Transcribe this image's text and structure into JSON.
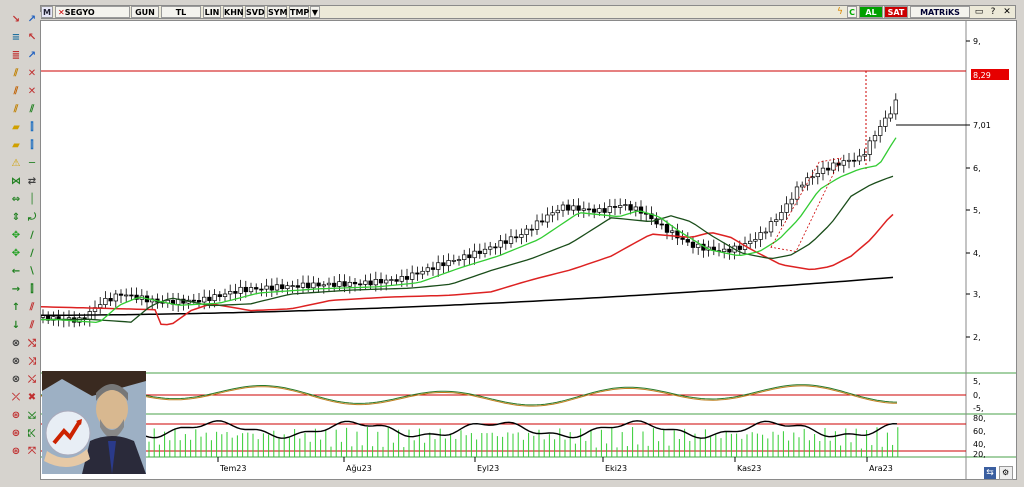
{
  "toolbar": {
    "symbol": "SEGYO",
    "buttons": [
      "GUN",
      "TL",
      "LIN",
      "KHN",
      "SVD",
      "SYM",
      "TMP"
    ],
    "buy_label": "AL",
    "sell_label": "SAT",
    "brand": "MATRiKS",
    "m_label": "M",
    "c_label": "C"
  },
  "colors": {
    "buy": "#00a000",
    "sell": "#cc0000",
    "ma_short": "#33cc33",
    "ma_mid": "#1a4d1a",
    "ma_long": "#dd2222",
    "ma_very_long": "#000000",
    "price_tag": "#e60000"
  },
  "icons": [
    "cursor-icon",
    "line-tool-icon",
    "arrow-tool-icon",
    "zoom-icon",
    "text-tool-icon",
    "gear-icon",
    "help-icon",
    "close-icon"
  ],
  "chart_data": {
    "type": "candlestick",
    "price_axis_labels": [
      "9,",
      "8,29",
      "7,01",
      "6,",
      "5,",
      "4,",
      "3,",
      "2,"
    ],
    "current_price": "7,01",
    "price_tag": "8,29",
    "xaxis_labels": [
      "Tem23",
      "Ağu23",
      "Eyl23",
      "Eki23",
      "Kas23",
      "Ara23"
    ],
    "osc_labels": [
      "5,",
      "0,",
      "-5,"
    ],
    "rsi_labels": [
      "80,",
      "60,",
      "40,",
      "20,"
    ],
    "ylim": [
      1,
      10
    ]
  }
}
